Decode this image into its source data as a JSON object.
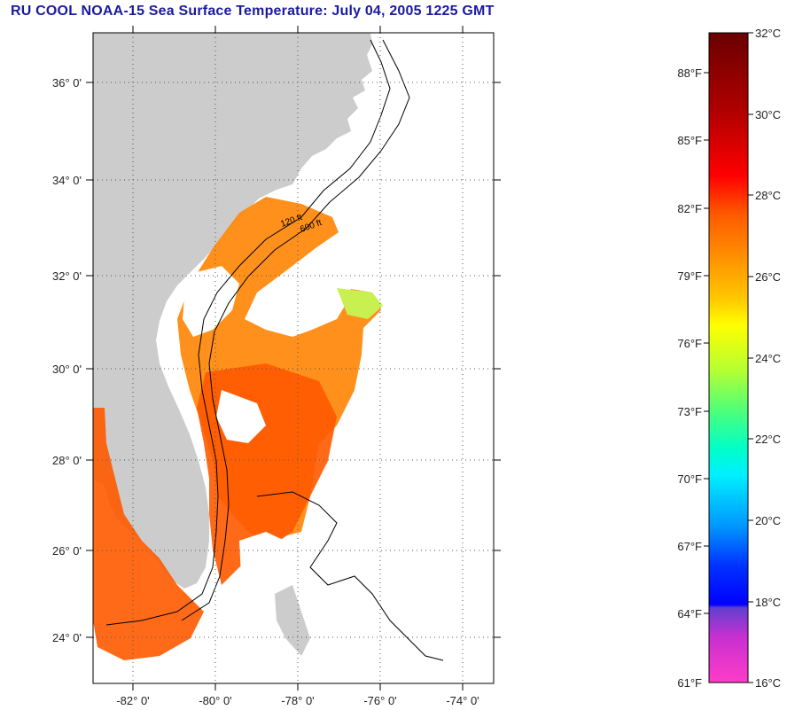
{
  "title": "RU COOL  NOAA-15  Sea Surface Temperature:  July 04, 2005 1225 GMT",
  "map": {
    "lat_ticks": [
      "36° 0'",
      "34° 0'",
      "32° 0'",
      "30° 0'",
      "28° 0'",
      "26° 0'",
      "24° 0'"
    ],
    "lon_ticks": [
      "-82° 0'",
      "-80° 0'",
      "-78° 0'",
      "-76° 0'",
      "-74° 0'"
    ],
    "isobath_labels": [
      "120 ft",
      "600 ft"
    ],
    "land_color": "#cccccc",
    "missing_color": "#ffffff"
  },
  "colorbar": {
    "celsius_labels": [
      "32°C",
      "30°C",
      "28°C",
      "26°C",
      "24°C",
      "22°C",
      "20°C",
      "18°C",
      "16°C"
    ],
    "fahrenheit_labels": [
      "88°F",
      "85°F",
      "82°F",
      "79°F",
      "76°F",
      "73°F",
      "70°F",
      "67°F",
      "64°F",
      "61°F"
    ],
    "colors_top_to_bottom": [
      "#6a0000",
      "#b00000",
      "#ff0000",
      "#ff5a00",
      "#ff8c00",
      "#ffc800",
      "#ffff00",
      "#b4ff32",
      "#50ff78",
      "#00ffc8",
      "#00f0ff",
      "#0096ff",
      "#0032ff",
      "#0000ff",
      "#8c28c8",
      "#ff28c8",
      "#ff3cc8"
    ]
  }
}
